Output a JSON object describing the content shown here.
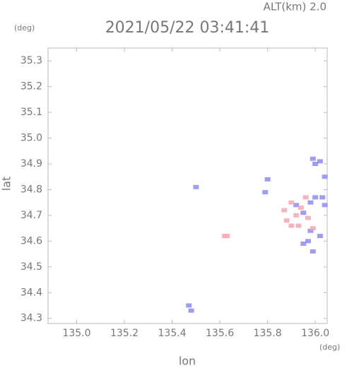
{
  "chart_data": {
    "type": "scatter",
    "title": "2021/05/22 03:41:41",
    "subtitle": "ALT(km) 2.0",
    "x_label": "lon",
    "y_label": "lat",
    "x_unit": "(deg)",
    "y_unit": "(deg)",
    "xlim": [
      134.88,
      136.05
    ],
    "ylim": [
      34.28,
      35.35
    ],
    "xticks": [
      {
        "value": 135.0,
        "label": "135.0"
      },
      135.2,
      135.4,
      135.6,
      135.8,
      {
        "value": 136.0,
        "label": "136.0"
      }
    ],
    "yticks": [
      34.3,
      34.4,
      34.5,
      34.6,
      34.7,
      34.8,
      34.9,
      {
        "value": 35.0,
        "label": "35.0"
      },
      35.1,
      35.2,
      35.3
    ],
    "series": [
      {
        "color": "#8c8cf0",
        "x": [
          136.02,
          136.0,
          135.99,
          136.04,
          136.03,
          136.04,
          136.0,
          135.98,
          135.95,
          135.92,
          135.8,
          135.79,
          135.5,
          135.47,
          135.48,
          135.97,
          135.99,
          135.95,
          136.02,
          135.98
        ],
        "values": [
          34.91,
          34.9,
          34.92,
          34.85,
          34.77,
          34.74,
          34.77,
          34.75,
          34.71,
          34.74,
          34.84,
          34.79,
          34.81,
          34.35,
          34.33,
          34.6,
          34.56,
          34.59,
          34.62,
          34.64
        ]
      },
      {
        "color": "#f2a8b4",
        "x": [
          135.9,
          135.92,
          135.88,
          135.94,
          135.96,
          135.93,
          135.9,
          135.97,
          135.99,
          135.87,
          135.63,
          135.62
        ],
        "values": [
          34.75,
          34.7,
          34.68,
          34.73,
          34.77,
          34.66,
          34.66,
          34.69,
          34.65,
          34.72,
          34.62,
          34.62
        ]
      }
    ]
  }
}
